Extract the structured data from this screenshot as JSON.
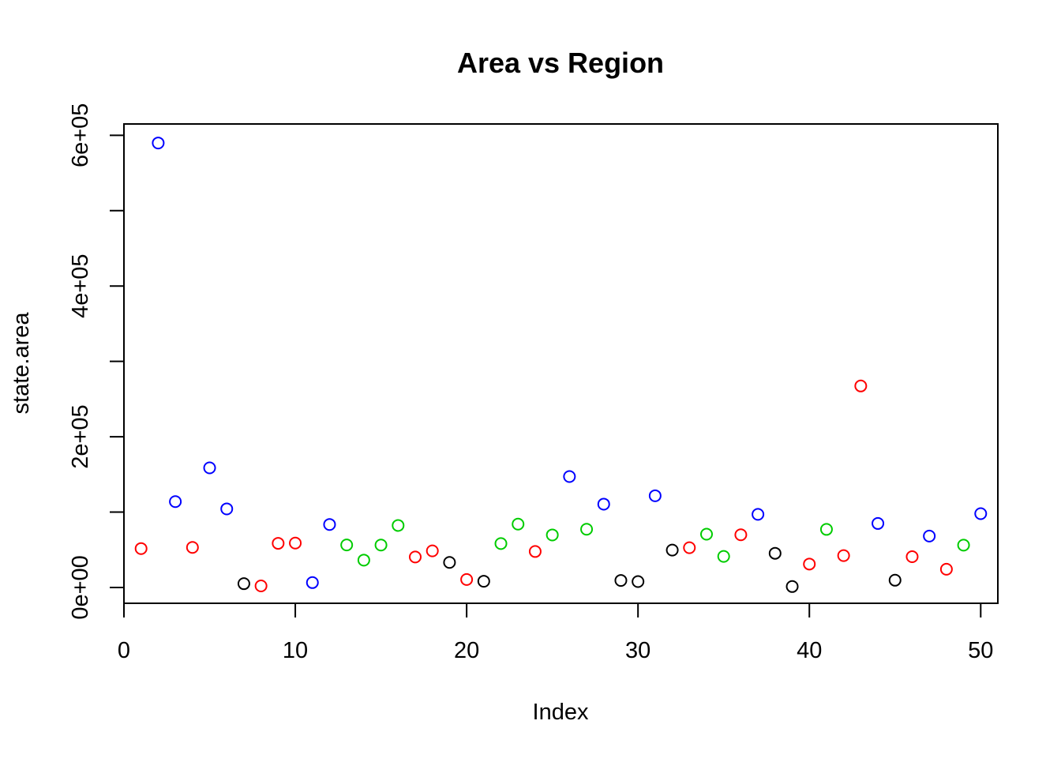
{
  "chart_data": {
    "type": "scatter",
    "title": "Area vs Region",
    "xlabel": "Index",
    "ylabel": "state.area",
    "xlim": [
      0,
      51
    ],
    "ylim": [
      -21000,
      615000
    ],
    "x_ticks": [
      0,
      10,
      20,
      30,
      40,
      50
    ],
    "x_tick_labels": [
      "0",
      "10",
      "20",
      "30",
      "40",
      "50"
    ],
    "y_ticks": [
      0,
      100000,
      200000,
      300000,
      400000,
      500000,
      600000
    ],
    "y_tick_labels": [
      "0e+00",
      "",
      "2e+05",
      "",
      "4e+05",
      "",
      "6e+05"
    ],
    "marker": "open-circle",
    "grid": false,
    "legend": "none",
    "colors": {
      "South": "#ff0000",
      "West": "#0000ff",
      "Northeast": "#000000",
      "North Central": "#00cc00"
    },
    "region_order": [
      "South",
      "West",
      "West",
      "South",
      "West",
      "West",
      "Northeast",
      "South",
      "South",
      "South",
      "West",
      "West",
      "North Central",
      "North Central",
      "North Central",
      "North Central",
      "South",
      "South",
      "Northeast",
      "South",
      "Northeast",
      "North Central",
      "North Central",
      "South",
      "North Central",
      "West",
      "North Central",
      "West",
      "Northeast",
      "Northeast",
      "West",
      "Northeast",
      "South",
      "North Central",
      "North Central",
      "South",
      "West",
      "Northeast",
      "Northeast",
      "South",
      "North Central",
      "South",
      "South",
      "West",
      "Northeast",
      "South",
      "West",
      "South",
      "North Central",
      "West"
    ],
    "x": [
      1,
      2,
      3,
      4,
      5,
      6,
      7,
      8,
      9,
      10,
      11,
      12,
      13,
      14,
      15,
      16,
      17,
      18,
      19,
      20,
      21,
      22,
      23,
      24,
      25,
      26,
      27,
      28,
      29,
      30,
      31,
      32,
      33,
      34,
      35,
      36,
      37,
      38,
      39,
      40,
      41,
      42,
      43,
      44,
      45,
      46,
      47,
      48,
      49,
      50
    ],
    "values": [
      51609,
      589757,
      113909,
      53104,
      158693,
      104247,
      5009,
      2057,
      58560,
      58876,
      6450,
      83557,
      56400,
      36291,
      56290,
      82264,
      40395,
      48523,
      33215,
      10577,
      8257,
      58216,
      84068,
      47716,
      69686,
      147138,
      77227,
      110540,
      9304,
      7836,
      121666,
      49576,
      52712,
      70665,
      41222,
      69919,
      96981,
      45333,
      1214,
      31055,
      77047,
      42244,
      267339,
      84916,
      9609,
      40815,
      68192,
      24181,
      56154,
      97914
    ]
  }
}
